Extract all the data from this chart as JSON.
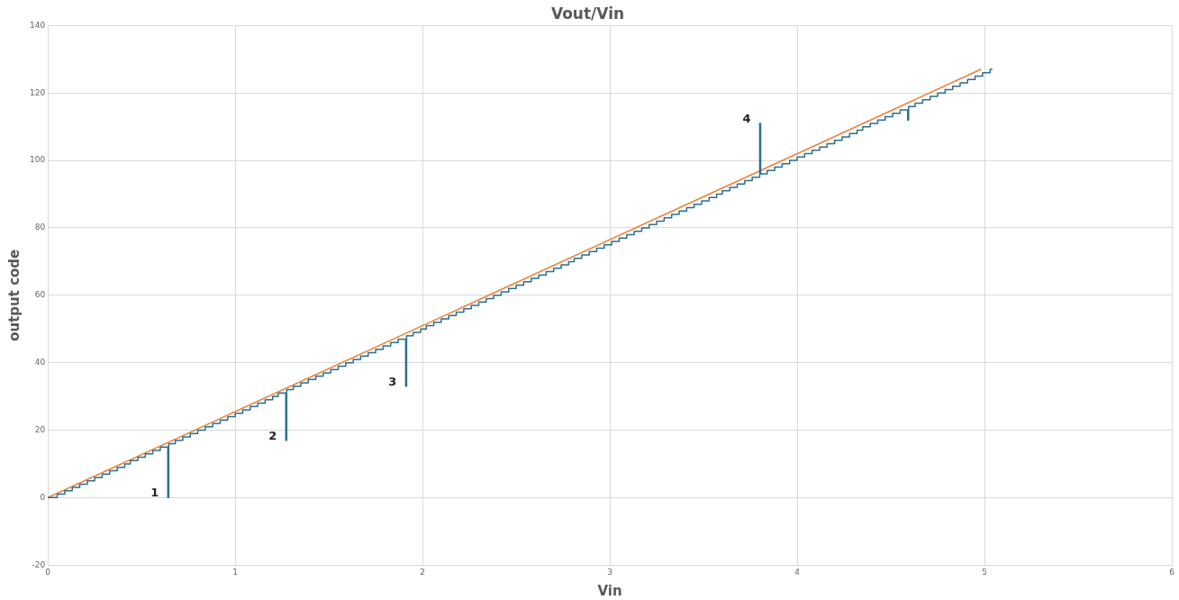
{
  "chart_data": {
    "type": "line",
    "title": "Vout/Vin",
    "xlabel": "Vin",
    "ylabel": "output code",
    "xlim": [
      0,
      6
    ],
    "xticks": [
      0,
      1,
      2,
      3,
      4,
      5,
      6
    ],
    "ylim": [
      -20,
      140
    ],
    "yticks": [
      -20,
      0,
      20,
      40,
      60,
      80,
      100,
      120,
      140
    ],
    "grid": true,
    "legend": false,
    "marker": "none",
    "series": [
      {
        "type": "step",
        "color": "#2a6f8f",
        "x": [
          0,
          0.05,
          0.09,
          0.13,
          0.17,
          0.21,
          0.25,
          0.29,
          0.33,
          0.37,
          0.41,
          0.44,
          0.48,
          0.52,
          0.56,
          0.6,
          0.64,
          0.645,
          0.68,
          0.72,
          0.76,
          0.8,
          0.84,
          0.88,
          0.92,
          0.96,
          1.0,
          1.04,
          1.08,
          1.12,
          1.16,
          1.2,
          1.23,
          1.27,
          1.275,
          1.31,
          1.35,
          1.39,
          1.43,
          1.47,
          1.51,
          1.55,
          1.59,
          1.63,
          1.67,
          1.71,
          1.75,
          1.79,
          1.83,
          1.87,
          1.91,
          1.915,
          1.95,
          1.99,
          2.02,
          2.06,
          2.1,
          2.14,
          2.18,
          2.22,
          2.26,
          2.3,
          2.34,
          2.38,
          2.42,
          2.46,
          2.5,
          2.54,
          2.58,
          2.62,
          2.66,
          2.7,
          2.74,
          2.78,
          2.81,
          2.85,
          2.89,
          2.93,
          2.97,
          3.01,
          3.05,
          3.09,
          3.13,
          3.17,
          3.21,
          3.25,
          3.29,
          3.33,
          3.37,
          3.41,
          3.45,
          3.49,
          3.53,
          3.57,
          3.6,
          3.64,
          3.68,
          3.72,
          3.76,
          3.8,
          3.805,
          3.84,
          3.88,
          3.92,
          3.96,
          4.0,
          4.04,
          4.08,
          4.12,
          4.16,
          4.2,
          4.24,
          4.28,
          4.32,
          4.35,
          4.39,
          4.43,
          4.47,
          4.51,
          4.55,
          4.59,
          4.595,
          4.63,
          4.67,
          4.71,
          4.75,
          4.79,
          4.83,
          4.87,
          4.91,
          4.95,
          4.99,
          5.03,
          5.04
        ],
        "values": [
          0,
          1,
          2,
          3,
          4,
          5,
          6,
          7,
          8,
          9,
          10,
          11,
          12,
          13,
          14,
          15,
          0,
          16,
          17,
          18,
          19,
          20,
          21,
          22,
          23,
          24,
          25,
          26,
          27,
          28,
          29,
          30,
          31,
          17,
          32,
          33,
          34,
          35,
          36,
          37,
          38,
          39,
          40,
          41,
          42,
          43,
          44,
          45,
          46,
          47,
          33,
          48,
          49,
          50,
          51,
          52,
          53,
          54,
          55,
          56,
          57,
          58,
          59,
          60,
          61,
          62,
          63,
          64,
          65,
          66,
          67,
          68,
          69,
          70,
          71,
          72,
          73,
          74,
          75,
          76,
          77,
          78,
          79,
          80,
          81,
          82,
          83,
          84,
          85,
          86,
          87,
          88,
          89,
          90,
          91,
          92,
          93,
          94,
          95,
          111,
          96,
          97,
          98,
          99,
          100,
          101,
          102,
          103,
          104,
          105,
          106,
          107,
          108,
          109,
          110,
          111,
          112,
          113,
          114,
          115,
          112,
          116,
          117,
          118,
          119,
          120,
          121,
          122,
          123,
          124,
          125,
          126,
          127,
          127
        ]
      },
      {
        "color": "#ed7d31",
        "x": [
          0,
          4.98
        ],
        "values": [
          0,
          127
        ]
      }
    ],
    "annotations": [
      {
        "text": "1",
        "x": 0.64,
        "y": 0
      },
      {
        "text": "2",
        "x": 1.27,
        "y": 17
      },
      {
        "text": "3",
        "x": 1.91,
        "y": 33
      },
      {
        "text": "4",
        "x": 3.8,
        "y": 111
      }
    ]
  }
}
